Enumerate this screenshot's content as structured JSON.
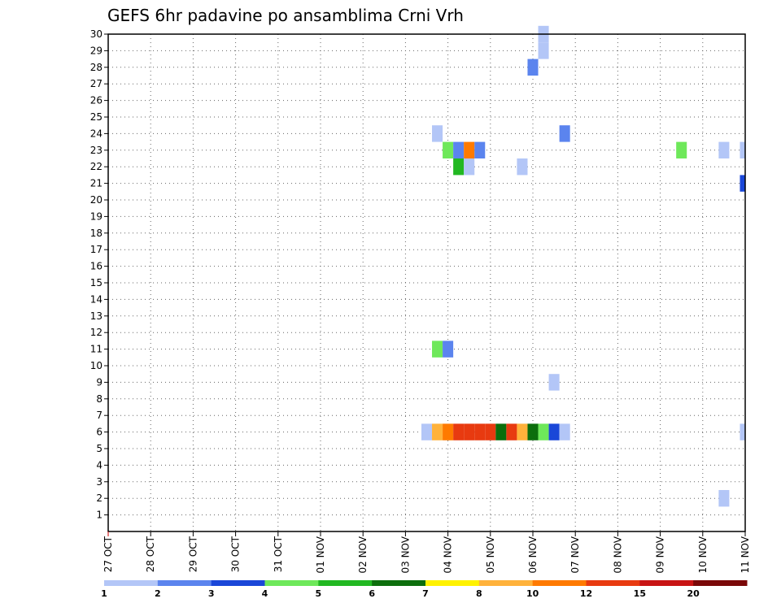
{
  "chart_data": {
    "type": "heatmap",
    "title": "GEFS 6hr padavine po ansamblima Crni Vrh",
    "x_ticks": [
      "27 OCT",
      "28 OCT",
      "29 OCT",
      "30 OCT",
      "31 OCT",
      "01 NOV",
      "02 NOV",
      "03 NOV",
      "04 NOV",
      "05 NOV",
      "06 NOV",
      "07 NOV",
      "08 NOV",
      "09 NOV",
      "10 NOV",
      "11 NOV"
    ],
    "y_ticks": [
      "1",
      "2",
      "3",
      "4",
      "5",
      "6",
      "7",
      "8",
      "9",
      "10",
      "11",
      "12",
      "13",
      "14",
      "15",
      "16",
      "17",
      "18",
      "19",
      "20",
      "21",
      "22",
      "23",
      "24",
      "25",
      "26",
      "27",
      "28",
      "29",
      "30"
    ],
    "xlim_days": [
      0,
      15
    ],
    "ylim": [
      0,
      30
    ],
    "step_days": 0.25,
    "grid": true,
    "colorbar": {
      "levels": [
        "1",
        "2",
        "3",
        "4",
        "5",
        "6",
        "7",
        "8",
        "10",
        "12",
        "15",
        "20"
      ],
      "colors": [
        "#b3c6f7",
        "#5b84ee",
        "#1a47d8",
        "#6ee85a",
        "#22b822",
        "#0c6e0c",
        "#fff200",
        "#ffb23b",
        "#ff7a00",
        "#e83a10",
        "#c81414",
        "#7a0808"
      ]
    },
    "cells": [
      {
        "member": 30,
        "x_day": 10.25,
        "bin": 1
      },
      {
        "member": 29,
        "x_day": 10.25,
        "bin": 1
      },
      {
        "member": 28,
        "x_day": 10.0,
        "bin": 2
      },
      {
        "member": 24,
        "x_day": 7.75,
        "bin": 1
      },
      {
        "member": 24,
        "x_day": 10.75,
        "bin": 2
      },
      {
        "member": 23,
        "x_day": 8.0,
        "bin": 4
      },
      {
        "member": 23,
        "x_day": 8.25,
        "bin": 2
      },
      {
        "member": 23,
        "x_day": 8.5,
        "bin": 9
      },
      {
        "member": 23,
        "x_day": 8.75,
        "bin": 2
      },
      {
        "member": 23,
        "x_day": 13.5,
        "bin": 4
      },
      {
        "member": 23,
        "x_day": 14.5,
        "bin": 1
      },
      {
        "member": 23,
        "x_day": 15.0,
        "bin": 1
      },
      {
        "member": 22,
        "x_day": 8.25,
        "bin": 5
      },
      {
        "member": 22,
        "x_day": 8.5,
        "bin": 1
      },
      {
        "member": 22,
        "x_day": 9.75,
        "bin": 1
      },
      {
        "member": 21,
        "x_day": 15.0,
        "bin": 3
      },
      {
        "member": 11,
        "x_day": 7.75,
        "bin": 4
      },
      {
        "member": 11,
        "x_day": 8.0,
        "bin": 2
      },
      {
        "member": 9,
        "x_day": 10.5,
        "bin": 1
      },
      {
        "member": 6,
        "x_day": 7.5,
        "bin": 1
      },
      {
        "member": 6,
        "x_day": 7.75,
        "bin": 8
      },
      {
        "member": 6,
        "x_day": 8.0,
        "bin": 9
      },
      {
        "member": 6,
        "x_day": 8.25,
        "bin": 10
      },
      {
        "member": 6,
        "x_day": 8.5,
        "bin": 10
      },
      {
        "member": 6,
        "x_day": 8.75,
        "bin": 10
      },
      {
        "member": 6,
        "x_day": 9.0,
        "bin": 10
      },
      {
        "member": 6,
        "x_day": 9.25,
        "bin": 6
      },
      {
        "member": 6,
        "x_day": 9.5,
        "bin": 10
      },
      {
        "member": 6,
        "x_day": 9.75,
        "bin": 8
      },
      {
        "member": 6,
        "x_day": 10.0,
        "bin": 6
      },
      {
        "member": 6,
        "x_day": 10.25,
        "bin": 4
      },
      {
        "member": 6,
        "x_day": 10.5,
        "bin": 3
      },
      {
        "member": 6,
        "x_day": 10.75,
        "bin": 1
      },
      {
        "member": 6,
        "x_day": 15.0,
        "bin": 1
      },
      {
        "member": 2,
        "x_day": 14.5,
        "bin": 1
      }
    ]
  }
}
